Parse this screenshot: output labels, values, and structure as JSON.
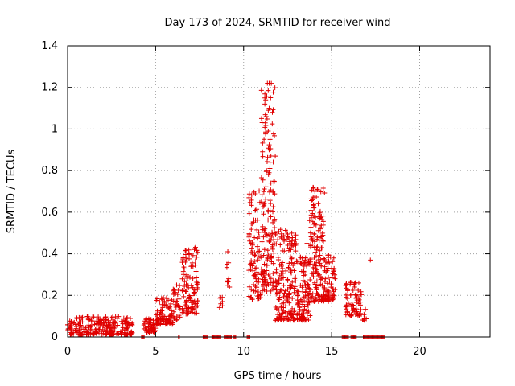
{
  "chart_data": {
    "type": "scatter",
    "title": "Day 173 of 2024, SRMTID for receiver wind",
    "xlabel": "GPS time / hours",
    "ylabel": "SRMTID / TECUs",
    "xlim": [
      0,
      24
    ],
    "ylim": [
      0,
      1.4
    ],
    "xticks": [
      0,
      5,
      10,
      15,
      20
    ],
    "xtick_labels": [
      "0",
      "5",
      "10",
      "15",
      "20"
    ],
    "yticks": [
      0,
      0.2,
      0.4,
      0.6,
      0.8,
      1.0,
      1.2,
      1.4
    ],
    "ytick_labels": [
      "0",
      "0.2",
      "0.4",
      "0.6",
      "0.8",
      "1",
      "1.2",
      "1.4"
    ],
    "grid": true,
    "marker": "+",
    "series": [
      {
        "name": "SRMTID",
        "color": "#e00000",
        "clusters": [
          {
            "x_start": 0.0,
            "x_end": 3.7,
            "y_min": 0.01,
            "y_max": 0.1,
            "count": 260
          },
          {
            "x_start": 4.3,
            "x_end": 5.0,
            "y_min": 0.02,
            "y_max": 0.09,
            "count": 50
          },
          {
            "x_start": 5.0,
            "x_end": 6.0,
            "y_min": 0.06,
            "y_max": 0.19,
            "count": 90
          },
          {
            "x_start": 6.0,
            "x_end": 6.4,
            "y_min": 0.08,
            "y_max": 0.25,
            "count": 30
          },
          {
            "x_start": 6.5,
            "x_end": 7.4,
            "y_min": 0.11,
            "y_max": 0.44,
            "count": 110
          },
          {
            "x_start": 8.6,
            "x_end": 8.8,
            "y_min": 0.14,
            "y_max": 0.2,
            "count": 6
          },
          {
            "x_start": 9.0,
            "x_end": 9.15,
            "y_min": 0.24,
            "y_max": 0.41,
            "count": 6
          },
          {
            "x_start": 10.3,
            "x_end": 11.0,
            "y_min": 0.18,
            "y_max": 0.71,
            "count": 90
          },
          {
            "x_start": 11.0,
            "x_end": 11.8,
            "y_min": 0.22,
            "y_max": 1.22,
            "count": 150
          },
          {
            "x_start": 11.8,
            "x_end": 13.0,
            "y_min": 0.08,
            "y_max": 0.52,
            "count": 180
          },
          {
            "x_start": 13.0,
            "x_end": 13.8,
            "y_min": 0.08,
            "y_max": 0.4,
            "count": 110
          },
          {
            "x_start": 13.8,
            "x_end": 14.6,
            "y_min": 0.17,
            "y_max": 0.72,
            "count": 150
          },
          {
            "x_start": 14.6,
            "x_end": 15.2,
            "y_min": 0.17,
            "y_max": 0.4,
            "count": 70
          },
          {
            "x_start": 15.8,
            "x_end": 16.7,
            "y_min": 0.1,
            "y_max": 0.27,
            "count": 80
          },
          {
            "x_start": 16.7,
            "x_end": 17.0,
            "y_min": 0.08,
            "y_max": 0.15,
            "count": 10
          }
        ],
        "points": [
          [
            11.35,
            1.22
          ],
          [
            11.45,
            1.22
          ],
          [
            11.4,
            1.09
          ],
          [
            11.45,
            1.1
          ],
          [
            11.4,
            0.99
          ],
          [
            11.5,
            0.95
          ],
          [
            11.45,
            0.9
          ],
          [
            11.55,
            0.87
          ],
          [
            11.5,
            0.84
          ],
          [
            11.3,
            0.8
          ],
          [
            11.45,
            0.79
          ],
          [
            11.55,
            0.74
          ],
          [
            13.95,
            0.72
          ],
          [
            14.05,
            0.7
          ],
          [
            13.9,
            0.66
          ],
          [
            14.0,
            0.62
          ],
          [
            13.75,
            0.56
          ],
          [
            17.2,
            0.37
          ],
          [
            13.6,
            0.45
          ],
          [
            15.0,
            0.33
          ],
          [
            9.1,
            0.41
          ],
          [
            9.05,
            0.35
          ],
          [
            9.15,
            0.28
          ],
          [
            9.2,
            0.24
          ],
          [
            8.7,
            0.19
          ],
          [
            8.8,
            0.15
          ]
        ],
        "zeros": [
          [
            4.2,
            4.25
          ],
          [
            4.3,
            4.35
          ],
          [
            6.3,
            6.35
          ],
          [
            7.7,
            7.95
          ],
          [
            8.2,
            8.7
          ],
          [
            8.9,
            9.3
          ],
          [
            9.45,
            9.55
          ],
          [
            10.2,
            10.35
          ],
          [
            15.6,
            15.95
          ],
          [
            16.1,
            16.4
          ],
          [
            16.8,
            18.0
          ]
        ]
      }
    ]
  }
}
